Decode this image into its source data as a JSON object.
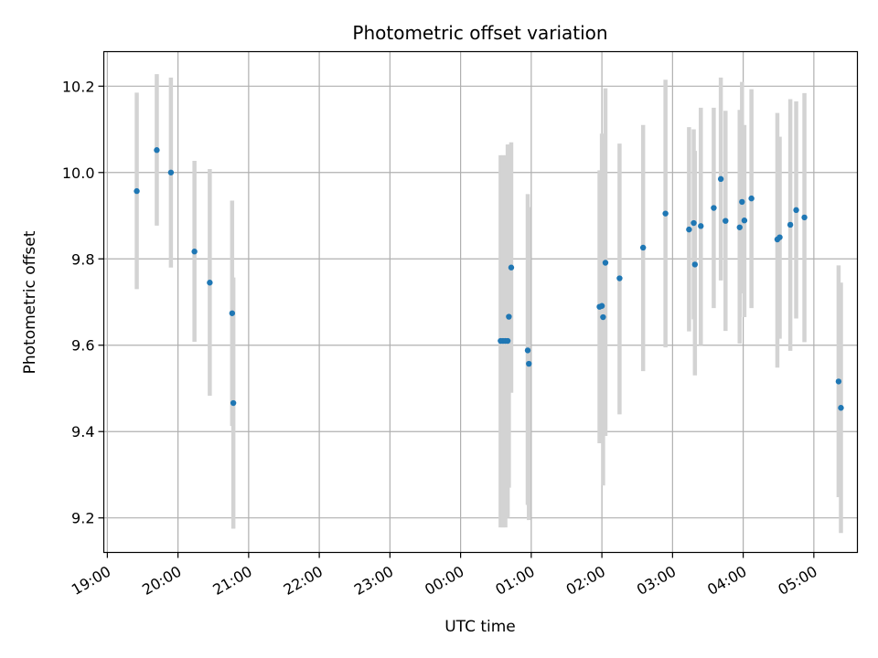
{
  "chart_data": {
    "type": "scatter",
    "title": "Photometric offset variation",
    "xlabel": "UTC time",
    "ylabel": "Photometric offset",
    "x_unit": "UTC time of night (HH:MM)",
    "xlim": [
      "18:57",
      "05:37"
    ],
    "ylim": [
      9.12,
      10.28
    ],
    "grid": true,
    "x_ticks": [
      "19:00",
      "20:00",
      "21:00",
      "22:00",
      "23:00",
      "00:00",
      "01:00",
      "02:00",
      "03:00",
      "04:00",
      "05:00"
    ],
    "y_ticks": [
      9.2,
      9.4,
      9.6,
      9.8,
      10.0,
      10.2
    ],
    "marker_color": "#1f77b4",
    "errorbar_color": "#d3d3d3",
    "series": [
      {
        "points": [
          {
            "x": "19:25",
            "y": 9.957,
            "ylo": 9.73,
            "yhi": 10.185
          },
          {
            "x": "19:42",
            "y": 10.052,
            "ylo": 9.877,
            "yhi": 10.228
          },
          {
            "x": "19:54",
            "y": 10.0,
            "ylo": 9.78,
            "yhi": 10.22
          },
          {
            "x": "20:14",
            "y": 9.817,
            "ylo": 9.608,
            "yhi": 10.027
          },
          {
            "x": "20:27",
            "y": 9.745,
            "ylo": 9.483,
            "yhi": 10.008
          },
          {
            "x": "20:46",
            "y": 9.674,
            "ylo": 9.413,
            "yhi": 9.935
          },
          {
            "x": "20:47",
            "y": 9.466,
            "ylo": 9.175,
            "yhi": 9.757
          },
          {
            "x": "00:34",
            "y": 9.61,
            "ylo": 9.178,
            "yhi": 10.04
          },
          {
            "x": "00:36",
            "y": 9.61,
            "ylo": 9.178,
            "yhi": 10.04
          },
          {
            "x": "00:38",
            "y": 9.61,
            "ylo": 9.178,
            "yhi": 10.04
          },
          {
            "x": "00:40",
            "y": 9.61,
            "ylo": 9.2,
            "yhi": 10.065
          },
          {
            "x": "00:41",
            "y": 9.666,
            "ylo": 9.27,
            "yhi": 10.065
          },
          {
            "x": "00:43",
            "y": 9.78,
            "ylo": 9.49,
            "yhi": 10.07
          },
          {
            "x": "00:57",
            "y": 9.588,
            "ylo": 9.23,
            "yhi": 9.95
          },
          {
            "x": "00:58",
            "y": 9.557,
            "ylo": 9.195,
            "yhi": 9.92
          },
          {
            "x": "01:58",
            "y": 9.689,
            "ylo": 9.373,
            "yhi": 10.005
          },
          {
            "x": "02:00",
            "y": 9.691,
            "ylo": 9.39,
            "yhi": 10.09
          },
          {
            "x": "02:01",
            "y": 9.665,
            "ylo": 9.275,
            "yhi": 10.05
          },
          {
            "x": "02:03",
            "y": 9.791,
            "ylo": 9.39,
            "yhi": 10.195
          },
          {
            "x": "02:15",
            "y": 9.755,
            "ylo": 9.44,
            "yhi": 10.067
          },
          {
            "x": "02:35",
            "y": 9.826,
            "ylo": 9.54,
            "yhi": 10.11
          },
          {
            "x": "02:54",
            "y": 9.905,
            "ylo": 9.595,
            "yhi": 10.215
          },
          {
            "x": "03:14",
            "y": 9.868,
            "ylo": 9.632,
            "yhi": 10.105
          },
          {
            "x": "03:18",
            "y": 9.883,
            "ylo": 9.66,
            "yhi": 10.1
          },
          {
            "x": "03:19",
            "y": 9.787,
            "ylo": 9.53,
            "yhi": 10.05
          },
          {
            "x": "03:24",
            "y": 9.876,
            "ylo": 9.6,
            "yhi": 10.15
          },
          {
            "x": "03:35",
            "y": 9.918,
            "ylo": 9.686,
            "yhi": 10.15
          },
          {
            "x": "03:41",
            "y": 9.985,
            "ylo": 9.75,
            "yhi": 10.22
          },
          {
            "x": "03:45",
            "y": 9.888,
            "ylo": 9.633,
            "yhi": 10.143
          },
          {
            "x": "03:57",
            "y": 9.873,
            "ylo": 9.604,
            "yhi": 10.145
          },
          {
            "x": "03:59",
            "y": 9.932,
            "ylo": 9.72,
            "yhi": 10.21
          },
          {
            "x": "04:01",
            "y": 9.889,
            "ylo": 9.665,
            "yhi": 10.11
          },
          {
            "x": "04:07",
            "y": 9.94,
            "ylo": 9.686,
            "yhi": 10.193
          },
          {
            "x": "04:29",
            "y": 9.845,
            "ylo": 9.548,
            "yhi": 10.138
          },
          {
            "x": "04:31",
            "y": 9.85,
            "ylo": 9.615,
            "yhi": 10.083
          },
          {
            "x": "04:40",
            "y": 9.879,
            "ylo": 9.587,
            "yhi": 10.17
          },
          {
            "x": "04:45",
            "y": 9.913,
            "ylo": 9.662,
            "yhi": 10.165
          },
          {
            "x": "04:52",
            "y": 9.896,
            "ylo": 9.607,
            "yhi": 10.184
          },
          {
            "x": "05:21",
            "y": 9.516,
            "ylo": 9.248,
            "yhi": 9.785
          },
          {
            "x": "05:23",
            "y": 9.455,
            "ylo": 9.165,
            "yhi": 9.745
          }
        ]
      }
    ]
  }
}
